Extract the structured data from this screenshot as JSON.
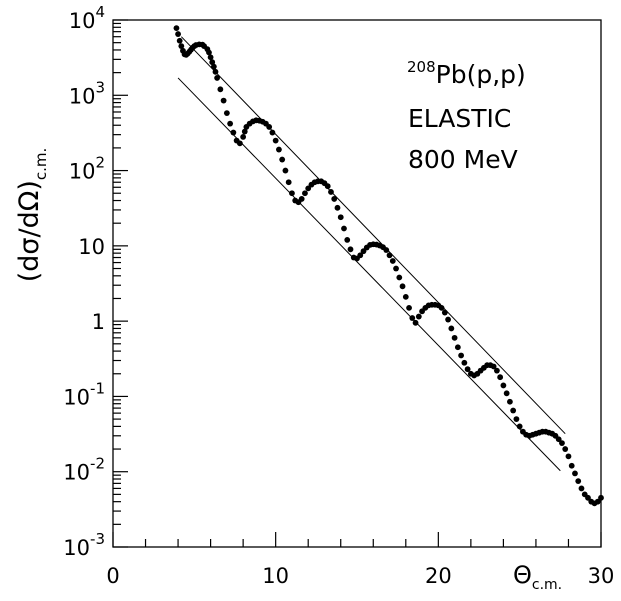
{
  "chart_data": {
    "type": "scatter",
    "title": "",
    "x_axis": {
      "label_main": "Θ",
      "label_sub": "c.m.",
      "min": 0,
      "max": 30,
      "major_ticks": [
        0,
        10,
        20,
        30
      ],
      "tick_labels": [
        "0",
        "10",
        "20",
        "30"
      ]
    },
    "y_axis": {
      "scale": "log",
      "label_main": "(dσ/dΩ)",
      "label_sub": "c.m.",
      "min": 0.001,
      "max": 10000,
      "tick_labels": [
        {
          "value": 0.001,
          "base": "10",
          "exp": "-3"
        },
        {
          "value": 0.01,
          "base": "10",
          "exp": "-2"
        },
        {
          "value": 0.1,
          "base": "10",
          "exp": "-1"
        },
        {
          "value": 1,
          "base": "1",
          "exp": ""
        },
        {
          "value": 10,
          "base": "10",
          "exp": ""
        },
        {
          "value": 100,
          "base": "10",
          "exp": "2"
        },
        {
          "value": 1000,
          "base": "10",
          "exp": "3"
        },
        {
          "value": 10000,
          "base": "10",
          "exp": "4"
        }
      ]
    },
    "annotation": {
      "nucleus_mass": "208",
      "reaction": "Pb(p,p)",
      "line2": "ELASTIC",
      "line3": "800 MeV"
    },
    "envelope_lines": [
      {
        "x": [
          4.2,
          27.8
        ],
        "y": [
          6000,
          0.032
        ]
      },
      {
        "x": [
          4.0,
          27.5
        ],
        "y": [
          1700,
          0.0103
        ]
      }
    ],
    "series": [
      {
        "marker": "filled-circle",
        "color": "#000000",
        "points": [
          [
            3.9,
            7800
          ],
          [
            4.0,
            6500
          ],
          [
            4.1,
            5300
          ],
          [
            4.2,
            4500
          ],
          [
            4.3,
            3900
          ],
          [
            4.4,
            3500
          ],
          [
            4.5,
            3450
          ],
          [
            4.6,
            3600
          ],
          [
            4.7,
            3800
          ],
          [
            4.8,
            4050
          ],
          [
            4.9,
            4300
          ],
          [
            5.0,
            4500
          ],
          [
            5.1,
            4650
          ],
          [
            5.3,
            4750
          ],
          [
            5.5,
            4700
          ],
          [
            5.6,
            4500
          ],
          [
            5.8,
            4100
          ],
          [
            5.9,
            3700
          ],
          [
            6.0,
            3200
          ],
          [
            6.1,
            2750
          ],
          [
            6.2,
            2400
          ],
          [
            6.3,
            2050
          ],
          [
            6.4,
            1700
          ],
          [
            6.6,
            1200
          ],
          [
            6.8,
            850
          ],
          [
            7.0,
            580
          ],
          [
            7.2,
            420
          ],
          [
            7.4,
            320
          ],
          [
            7.6,
            250
          ],
          [
            7.8,
            230
          ],
          [
            8.0,
            280
          ],
          [
            8.1,
            330
          ],
          [
            8.2,
            380
          ],
          [
            8.4,
            420
          ],
          [
            8.6,
            450
          ],
          [
            8.8,
            465
          ],
          [
            9.0,
            460
          ],
          [
            9.2,
            445
          ],
          [
            9.4,
            420
          ],
          [
            9.6,
            380
          ],
          [
            9.8,
            320
          ],
          [
            10.0,
            250
          ],
          [
            10.2,
            190
          ],
          [
            10.4,
            140
          ],
          [
            10.6,
            100
          ],
          [
            10.8,
            70
          ],
          [
            11.0,
            50
          ],
          [
            11.2,
            40
          ],
          [
            11.4,
            38
          ],
          [
            11.6,
            42
          ],
          [
            11.8,
            50
          ],
          [
            12.0,
            58
          ],
          [
            12.2,
            65
          ],
          [
            12.4,
            70
          ],
          [
            12.6,
            72
          ],
          [
            12.8,
            72
          ],
          [
            13.0,
            68
          ],
          [
            13.2,
            62
          ],
          [
            13.4,
            52
          ],
          [
            13.6,
            42
          ],
          [
            13.8,
            32
          ],
          [
            14.0,
            24
          ],
          [
            14.2,
            17
          ],
          [
            14.4,
            12
          ],
          [
            14.6,
            9
          ],
          [
            14.8,
            7
          ],
          [
            15.0,
            6.8
          ],
          [
            15.2,
            7.5
          ],
          [
            15.4,
            8.5
          ],
          [
            15.6,
            9.5
          ],
          [
            15.8,
            10.3
          ],
          [
            16.0,
            10.5
          ],
          [
            16.2,
            10.4
          ],
          [
            16.4,
            10.1
          ],
          [
            16.6,
            9.6
          ],
          [
            16.8,
            8.8
          ],
          [
            17.0,
            7.5
          ],
          [
            17.2,
            6.3
          ],
          [
            17.4,
            5.0
          ],
          [
            17.6,
            3.8
          ],
          [
            17.8,
            2.9
          ],
          [
            18.0,
            2.1
          ],
          [
            18.2,
            1.5
          ],
          [
            18.4,
            1.1
          ],
          [
            18.6,
            0.95
          ],
          [
            18.8,
            1.15
          ],
          [
            19.0,
            1.35
          ],
          [
            19.2,
            1.5
          ],
          [
            19.4,
            1.62
          ],
          [
            19.6,
            1.65
          ],
          [
            19.8,
            1.65
          ],
          [
            20.0,
            1.62
          ],
          [
            20.2,
            1.5
          ],
          [
            20.4,
            1.3
          ],
          [
            20.6,
            1.05
          ],
          [
            20.8,
            0.8
          ],
          [
            21.0,
            0.6
          ],
          [
            21.2,
            0.45
          ],
          [
            21.4,
            0.35
          ],
          [
            21.6,
            0.28
          ],
          [
            21.8,
            0.23
          ],
          [
            22.0,
            0.2
          ],
          [
            22.2,
            0.19
          ],
          [
            22.4,
            0.2
          ],
          [
            22.6,
            0.22
          ],
          [
            22.8,
            0.24
          ],
          [
            23.0,
            0.26
          ],
          [
            23.2,
            0.26
          ],
          [
            23.4,
            0.25
          ],
          [
            23.6,
            0.22
          ],
          [
            23.8,
            0.18
          ],
          [
            24.0,
            0.14
          ],
          [
            24.2,
            0.11
          ],
          [
            24.4,
            0.085
          ],
          [
            24.6,
            0.065
          ],
          [
            24.8,
            0.05
          ],
          [
            25.0,
            0.04
          ],
          [
            25.2,
            0.034
          ],
          [
            25.4,
            0.031
          ],
          [
            25.6,
            0.03
          ],
          [
            25.8,
            0.031
          ],
          [
            26.0,
            0.032
          ],
          [
            26.2,
            0.033
          ],
          [
            26.4,
            0.034
          ],
          [
            26.6,
            0.034
          ],
          [
            26.8,
            0.033
          ],
          [
            27.0,
            0.032
          ],
          [
            27.2,
            0.03
          ],
          [
            27.4,
            0.027
          ],
          [
            27.6,
            0.024
          ],
          [
            27.8,
            0.02
          ],
          [
            28.0,
            0.016
          ],
          [
            28.2,
            0.012
          ],
          [
            28.4,
            0.0095
          ],
          [
            28.6,
            0.0075
          ],
          [
            28.8,
            0.006
          ],
          [
            29.0,
            0.005
          ],
          [
            29.2,
            0.0045
          ],
          [
            29.4,
            0.004
          ],
          [
            29.6,
            0.0038
          ],
          [
            29.8,
            0.004
          ],
          [
            30.0,
            0.0045
          ]
        ]
      }
    ]
  }
}
